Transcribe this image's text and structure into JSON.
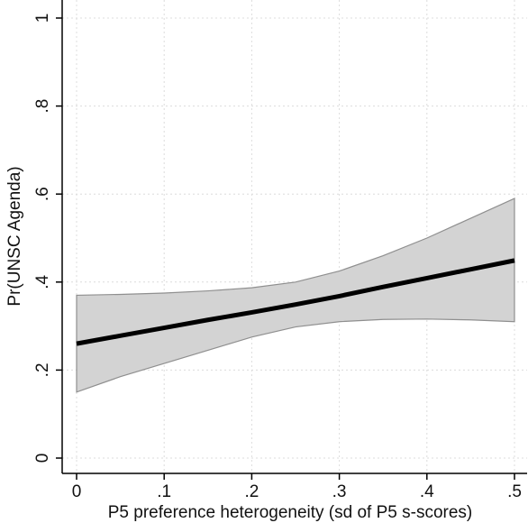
{
  "chart_data": {
    "type": "line",
    "title": "",
    "xlabel": "P5 preference heterogeneity (sd of P5 s-scores)",
    "ylabel": "Pr(UNSC Agenda)",
    "xlim": [
      0,
      0.5
    ],
    "ylim": [
      0,
      1
    ],
    "x_ticks": [
      0,
      0.1,
      0.2,
      0.3,
      0.4,
      0.5
    ],
    "x_tick_labels": [
      "0",
      ".1",
      ".2",
      ".3",
      ".4",
      ".5"
    ],
    "y_ticks": [
      0,
      0.2,
      0.4,
      0.6,
      0.8,
      1
    ],
    "y_tick_labels": [
      "0",
      ".2",
      ".4",
      ".6",
      ".8",
      "1"
    ],
    "grid": true,
    "legend": "none",
    "series": [
      {
        "x": [
          0,
          0.05,
          0.1,
          0.15,
          0.2,
          0.25,
          0.3,
          0.35,
          0.4,
          0.45,
          0.5
        ],
        "values": [
          0.26,
          0.278,
          0.296,
          0.314,
          0.331,
          0.349,
          0.368,
          0.389,
          0.409,
          0.429,
          0.449
        ],
        "lower": [
          0.15,
          0.185,
          0.215,
          0.245,
          0.275,
          0.298,
          0.31,
          0.315,
          0.316,
          0.314,
          0.31
        ],
        "upper": [
          0.37,
          0.372,
          0.375,
          0.38,
          0.387,
          0.4,
          0.425,
          0.46,
          0.5,
          0.545,
          0.59
        ]
      }
    ],
    "colors": {
      "line": "#000000",
      "band_fill": "#d3d3d3",
      "band_edge": "#8f8f8f",
      "grid": "#dcdcdc",
      "axis": "#000000"
    }
  }
}
